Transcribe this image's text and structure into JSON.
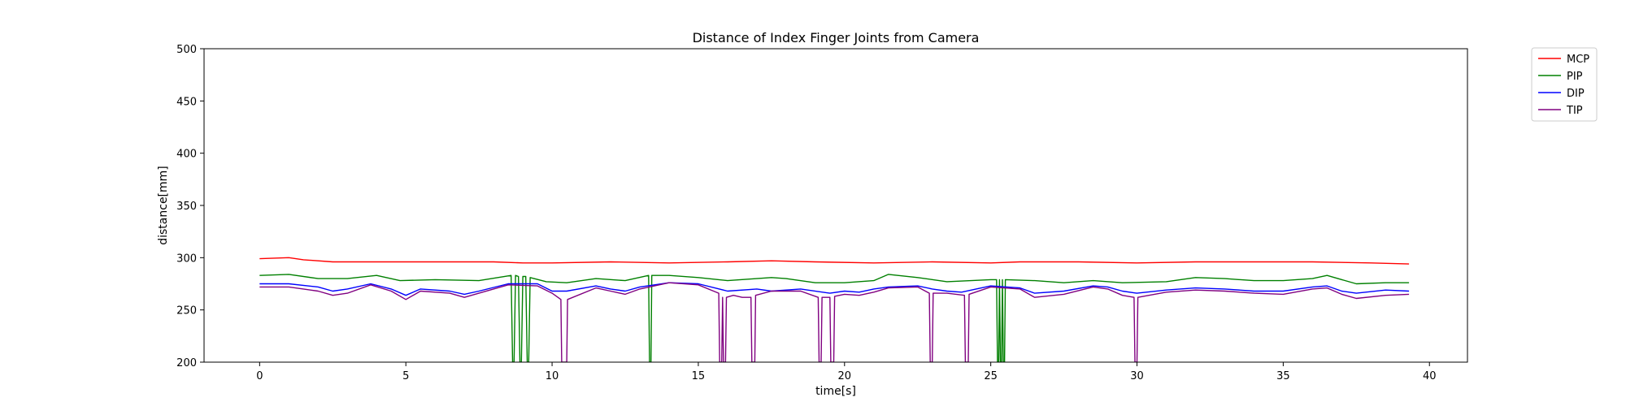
{
  "chart_data": {
    "type": "line",
    "title": "Distance of Index Finger Joints from Camera",
    "xlabel": "time[s]",
    "ylabel": "distance[mm]",
    "xlim": [
      -1.9,
      41.3
    ],
    "ylim": [
      200,
      500
    ],
    "xticks": [
      0,
      5,
      10,
      15,
      20,
      25,
      30,
      35,
      40
    ],
    "yticks": [
      200,
      250,
      300,
      350,
      400,
      450,
      500
    ],
    "grid": false,
    "legend_position": "outside-top-right",
    "series": [
      {
        "name": "MCP",
        "color": "#ff0000",
        "points": [
          [
            0,
            299
          ],
          [
            1,
            300
          ],
          [
            1.5,
            298
          ],
          [
            2.5,
            296
          ],
          [
            4,
            296
          ],
          [
            6,
            296
          ],
          [
            8,
            296
          ],
          [
            9,
            295
          ],
          [
            10,
            295
          ],
          [
            12,
            296
          ],
          [
            14,
            295
          ],
          [
            16,
            296
          ],
          [
            17.5,
            297
          ],
          [
            19,
            296
          ],
          [
            21,
            295
          ],
          [
            23,
            296
          ],
          [
            25,
            295
          ],
          [
            26,
            296
          ],
          [
            28,
            296
          ],
          [
            30,
            295
          ],
          [
            32,
            296
          ],
          [
            34,
            296
          ],
          [
            36,
            296
          ],
          [
            38,
            295
          ],
          [
            39.3,
            294
          ]
        ]
      },
      {
        "name": "PIP",
        "color": "#008000",
        "points": [
          [
            0,
            283
          ],
          [
            1,
            284
          ],
          [
            2,
            280
          ],
          [
            3,
            280
          ],
          [
            4,
            283
          ],
          [
            4.8,
            278
          ],
          [
            6,
            279
          ],
          [
            7.5,
            278
          ],
          [
            8.6,
            283
          ],
          [
            8.65,
            200
          ],
          [
            8.7,
            200
          ],
          [
            8.75,
            283
          ],
          [
            8.85,
            282
          ],
          [
            8.9,
            200
          ],
          [
            8.95,
            200
          ],
          [
            9,
            282
          ],
          [
            9.1,
            282
          ],
          [
            9.15,
            200
          ],
          [
            9.2,
            200
          ],
          [
            9.25,
            281
          ],
          [
            9.8,
            277
          ],
          [
            10.5,
            276
          ],
          [
            11.5,
            280
          ],
          [
            12.5,
            278
          ],
          [
            13.3,
            283
          ],
          [
            13.33,
            200
          ],
          [
            13.38,
            200
          ],
          [
            13.41,
            283
          ],
          [
            14,
            283
          ],
          [
            15,
            281
          ],
          [
            16,
            278
          ],
          [
            17.5,
            281
          ],
          [
            18,
            280
          ],
          [
            19,
            276
          ],
          [
            20,
            276
          ],
          [
            21,
            278
          ],
          [
            21.5,
            284
          ],
          [
            22.5,
            281
          ],
          [
            23.5,
            277
          ],
          [
            25,
            279
          ],
          [
            25.2,
            279
          ],
          [
            25.23,
            200
          ],
          [
            25.27,
            200
          ],
          [
            25.3,
            279
          ],
          [
            25.33,
            200
          ],
          [
            25.37,
            200
          ],
          [
            25.4,
            279
          ],
          [
            25.43,
            200
          ],
          [
            25.47,
            200
          ],
          [
            25.5,
            279
          ],
          [
            26.5,
            278
          ],
          [
            27.5,
            276
          ],
          [
            28.5,
            278
          ],
          [
            29.5,
            276
          ],
          [
            31,
            277
          ],
          [
            32,
            281
          ],
          [
            33,
            280
          ],
          [
            34,
            278
          ],
          [
            35,
            278
          ],
          [
            36,
            280
          ],
          [
            36.5,
            283
          ],
          [
            37.5,
            275
          ],
          [
            38.5,
            276
          ],
          [
            39.3,
            276
          ]
        ]
      },
      {
        "name": "DIP",
        "color": "#0000ff",
        "points": [
          [
            0,
            275
          ],
          [
            1,
            275
          ],
          [
            2,
            272
          ],
          [
            2.5,
            268
          ],
          [
            3,
            270
          ],
          [
            3.8,
            275
          ],
          [
            4.5,
            270
          ],
          [
            5,
            264
          ],
          [
            5.5,
            270
          ],
          [
            6.5,
            268
          ],
          [
            7,
            265
          ],
          [
            7.5,
            268
          ],
          [
            8.5,
            275
          ],
          [
            9.5,
            275
          ],
          [
            10,
            268
          ],
          [
            10.5,
            268
          ],
          [
            11.5,
            273
          ],
          [
            12,
            270
          ],
          [
            12.5,
            268
          ],
          [
            13,
            272
          ],
          [
            14,
            276
          ],
          [
            15,
            275
          ],
          [
            16,
            268
          ],
          [
            17,
            270
          ],
          [
            17.5,
            268
          ],
          [
            18.5,
            270
          ],
          [
            19.5,
            266
          ],
          [
            20,
            268
          ],
          [
            20.5,
            267
          ],
          [
            21,
            270
          ],
          [
            21.5,
            272
          ],
          [
            22.5,
            273
          ],
          [
            23,
            270
          ],
          [
            23.5,
            268
          ],
          [
            24,
            267
          ],
          [
            25,
            273
          ],
          [
            26,
            271
          ],
          [
            26.5,
            266
          ],
          [
            27.5,
            268
          ],
          [
            28.5,
            273
          ],
          [
            29,
            272
          ],
          [
            29.5,
            268
          ],
          [
            30,
            266
          ],
          [
            31,
            269
          ],
          [
            32,
            271
          ],
          [
            33,
            270
          ],
          [
            34,
            268
          ],
          [
            35,
            268
          ],
          [
            36,
            272
          ],
          [
            36.5,
            273
          ],
          [
            37,
            268
          ],
          [
            37.5,
            266
          ],
          [
            38.5,
            269
          ],
          [
            39.3,
            268
          ]
        ]
      },
      {
        "name": "TIP",
        "color": "#800080",
        "points": [
          [
            0,
            272
          ],
          [
            1,
            272
          ],
          [
            2,
            268
          ],
          [
            2.5,
            264
          ],
          [
            3,
            266
          ],
          [
            3.8,
            274
          ],
          [
            4.5,
            268
          ],
          [
            5,
            260
          ],
          [
            5.5,
            268
          ],
          [
            6.5,
            266
          ],
          [
            7,
            262
          ],
          [
            7.5,
            266
          ],
          [
            8.5,
            274
          ],
          [
            9.5,
            273
          ],
          [
            10,
            266
          ],
          [
            10.3,
            260
          ],
          [
            10.33,
            200
          ],
          [
            10.5,
            200
          ],
          [
            10.53,
            260
          ],
          [
            11.5,
            271
          ],
          [
            12,
            268
          ],
          [
            12.5,
            265
          ],
          [
            13,
            270
          ],
          [
            14,
            276
          ],
          [
            15,
            274
          ],
          [
            15.7,
            266
          ],
          [
            15.73,
            200
          ],
          [
            15.8,
            200
          ],
          [
            15.83,
            262
          ],
          [
            15.86,
            200
          ],
          [
            15.93,
            200
          ],
          [
            15.96,
            262
          ],
          [
            16.2,
            264
          ],
          [
            16.5,
            262
          ],
          [
            16.8,
            262
          ],
          [
            16.83,
            200
          ],
          [
            16.93,
            200
          ],
          [
            16.96,
            264
          ],
          [
            17.5,
            268
          ],
          [
            18.5,
            268
          ],
          [
            19.1,
            262
          ],
          [
            19.13,
            200
          ],
          [
            19.2,
            200
          ],
          [
            19.23,
            262
          ],
          [
            19.5,
            262
          ],
          [
            19.53,
            200
          ],
          [
            19.63,
            200
          ],
          [
            19.66,
            263
          ],
          [
            20,
            265
          ],
          [
            20.5,
            264
          ],
          [
            21,
            267
          ],
          [
            21.5,
            271
          ],
          [
            22.5,
            272
          ],
          [
            22.9,
            266
          ],
          [
            22.93,
            200
          ],
          [
            23,
            200
          ],
          [
            23.03,
            266
          ],
          [
            23.5,
            266
          ],
          [
            24.1,
            264
          ],
          [
            24.13,
            200
          ],
          [
            24.23,
            200
          ],
          [
            24.26,
            265
          ],
          [
            25,
            272
          ],
          [
            26,
            270
          ],
          [
            26.5,
            262
          ],
          [
            27.5,
            265
          ],
          [
            28.5,
            272
          ],
          [
            29,
            270
          ],
          [
            29.5,
            264
          ],
          [
            29.9,
            262
          ],
          [
            29.93,
            200
          ],
          [
            30,
            200
          ],
          [
            30.03,
            262
          ],
          [
            31,
            267
          ],
          [
            32,
            269
          ],
          [
            33,
            268
          ],
          [
            34,
            266
          ],
          [
            35,
            265
          ],
          [
            36,
            270
          ],
          [
            36.5,
            271
          ],
          [
            37,
            265
          ],
          [
            37.5,
            261
          ],
          [
            38.5,
            264
          ],
          [
            39.3,
            265
          ]
        ]
      }
    ]
  }
}
